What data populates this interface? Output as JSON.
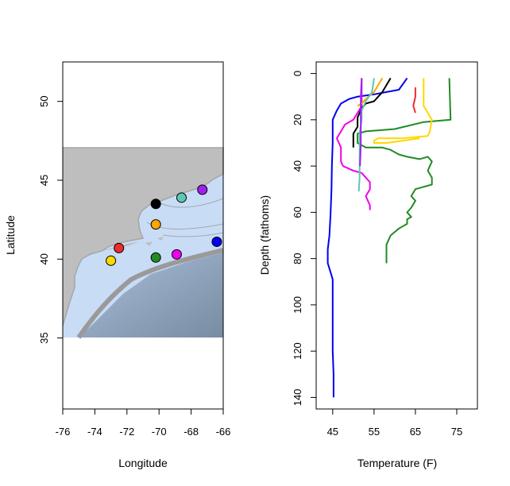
{
  "chart_data": [
    {
      "type": "scatter",
      "xlabel": "Longitude",
      "ylabel": "Latitude",
      "xlim": [
        -76,
        -66
      ],
      "ylim": [
        30.5,
        52.5
      ],
      "xticks": [
        "-76",
        "-74",
        "-72",
        "-70",
        "-68",
        "-66"
      ],
      "yticks": [
        "35",
        "40",
        "45",
        "50"
      ],
      "map_extent": {
        "lon": [
          -76,
          -66
        ],
        "lat": [
          35.1,
          46.9
        ]
      },
      "land_color": "#bebebe",
      "water_color": "#c8dcf6",
      "points": [
        {
          "lon": -70.2,
          "lat": 43.5,
          "color": "#000000"
        },
        {
          "lon": -68.6,
          "lat": 43.9,
          "color": "#5cc8b4"
        },
        {
          "lon": -67.3,
          "lat": 44.4,
          "color": "#a020f0"
        },
        {
          "lon": -70.2,
          "lat": 42.2,
          "color": "#ffa500"
        },
        {
          "lon": -72.5,
          "lat": 40.7,
          "color": "#ee2c2c"
        },
        {
          "lon": -73.0,
          "lat": 39.9,
          "color": "#ffd700"
        },
        {
          "lon": -70.2,
          "lat": 40.1,
          "color": "#228b22"
        },
        {
          "lon": -68.9,
          "lat": 40.3,
          "color": "#ee00ee"
        },
        {
          "lon": -66.4,
          "lat": 41.1,
          "color": "#0000ee"
        }
      ]
    },
    {
      "type": "line",
      "xlabel": "Temperature (F)",
      "ylabel": "Depth (fathoms)",
      "xlim": [
        41,
        80
      ],
      "ylim": [
        145,
        -5
      ],
      "y_reversed": true,
      "xticks": [
        "45",
        "55",
        "65",
        "75"
      ],
      "yticks": [
        "0",
        "20",
        "40",
        "60",
        "80",
        "100",
        "120",
        "140"
      ],
      "series": [
        {
          "color": "#0000ee",
          "points": [
            [
              63,
              2
            ],
            [
              61,
              7
            ],
            [
              58,
              8
            ],
            [
              55,
              9
            ],
            [
              51,
              10
            ],
            [
              49,
              11
            ],
            [
              47,
              13
            ],
            [
              46,
              16
            ],
            [
              45,
              20
            ],
            [
              45,
              30
            ],
            [
              44.8,
              40
            ],
            [
              44.7,
              50
            ],
            [
              44.5,
              60
            ],
            [
              44.2,
              70
            ],
            [
              43.8,
              76
            ],
            [
              43.8,
              82
            ],
            [
              44.5,
              86
            ],
            [
              45,
              89
            ],
            [
              45,
              100
            ],
            [
              45,
              120
            ],
            [
              45.2,
              130
            ],
            [
              45.2,
              140
            ]
          ]
        },
        {
          "color": "#228b22",
          "points": [
            [
              73.2,
              2
            ],
            [
              73.5,
              20
            ],
            [
              67,
              21
            ],
            [
              60,
              24
            ],
            [
              53,
              25
            ],
            [
              51,
              26
            ],
            [
              51,
              30
            ],
            [
              53,
              32
            ],
            [
              57,
              32
            ],
            [
              59,
              33
            ],
            [
              61,
              35
            ],
            [
              63,
              36
            ],
            [
              66,
              37
            ],
            [
              68,
              36
            ],
            [
              69,
              38
            ],
            [
              68,
              42
            ],
            [
              69,
              45
            ],
            [
              69,
              48
            ],
            [
              67,
              49
            ],
            [
              65,
              50
            ],
            [
              64,
              53
            ],
            [
              65,
              55
            ],
            [
              64,
              58
            ],
            [
              63,
              60
            ],
            [
              64,
              62
            ],
            [
              63,
              63
            ],
            [
              63,
              65
            ],
            [
              61,
              67
            ],
            [
              59,
              70
            ],
            [
              58,
              74
            ],
            [
              58,
              82
            ]
          ]
        },
        {
          "color": "#ffd700",
          "points": [
            [
              67,
              2
            ],
            [
              67,
              10
            ],
            [
              67,
              14
            ],
            [
              68,
              17
            ],
            [
              69,
              20
            ],
            [
              68.5,
              25
            ],
            [
              68,
              27
            ],
            [
              62,
              28
            ],
            [
              56,
              28
            ],
            [
              55,
              29
            ],
            [
              55,
              30
            ],
            [
              58,
              30
            ],
            [
              62,
              29
            ],
            [
              66,
              28
            ]
          ]
        },
        {
          "color": "#ee2c2c",
          "points": [
            [
              65,
              6
            ],
            [
              65,
              10
            ],
            [
              64.5,
              14
            ],
            [
              65,
              17
            ]
          ]
        },
        {
          "color": "#ee00ee",
          "points": [
            [
              52,
              2
            ],
            [
              52,
              8
            ],
            [
              52,
              14
            ],
            [
              51,
              17
            ],
            [
              50,
              20
            ],
            [
              48,
              22
            ],
            [
              47,
              25
            ],
            [
              46,
              28
            ],
            [
              47,
              32
            ],
            [
              47,
              38
            ],
            [
              47.5,
              40
            ],
            [
              50,
              42
            ],
            [
              52,
              43
            ],
            [
              53,
              45
            ],
            [
              54,
              47
            ],
            [
              54,
              50
            ],
            [
              53,
              53
            ],
            [
              54,
              57
            ],
            [
              54,
              59
            ]
          ]
        },
        {
          "color": "#ffa500",
          "points": [
            [
              57,
              2
            ],
            [
              56,
              5
            ],
            [
              55,
              8
            ],
            [
              53,
              11
            ],
            [
              52,
              13
            ],
            [
              51,
              14
            ]
          ]
        },
        {
          "color": "#000000",
          "points": [
            [
              59,
              2
            ],
            [
              58,
              5
            ],
            [
              57,
              8
            ],
            [
              56,
              10
            ],
            [
              55,
              12
            ],
            [
              53,
              13
            ],
            [
              52,
              15
            ],
            [
              51,
              19
            ],
            [
              51,
              23
            ],
            [
              50,
              26
            ],
            [
              50,
              32
            ]
          ]
        },
        {
          "color": "#5cc8b4",
          "points": [
            [
              55,
              2
            ],
            [
              54.5,
              8
            ],
            [
              53,
              12
            ],
            [
              52,
              16
            ],
            [
              52,
              20
            ],
            [
              51.5,
              26
            ],
            [
              51.5,
              35
            ],
            [
              51.5,
              45
            ],
            [
              51.3,
              51
            ]
          ]
        },
        {
          "color": "#a020f0",
          "points": [
            [
              52,
              2
            ],
            [
              51.8,
              10
            ],
            [
              51.8,
              20
            ],
            [
              51.8,
              30
            ],
            [
              51.6,
              40
            ]
          ]
        }
      ]
    }
  ]
}
